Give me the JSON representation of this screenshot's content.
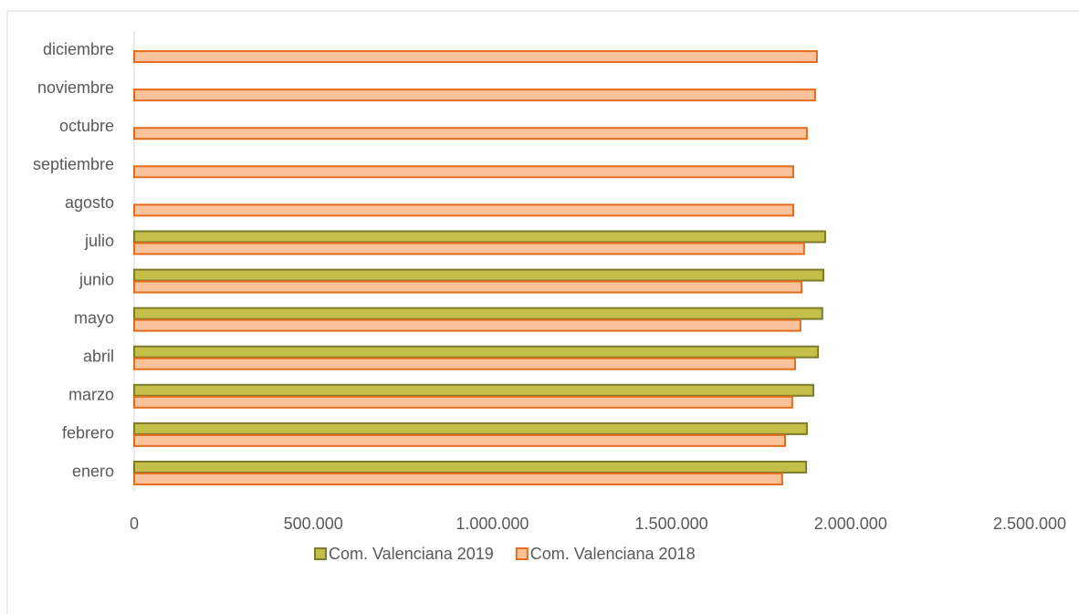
{
  "chart_data": {
    "type": "barh",
    "categories": [
      "enero",
      "febrero",
      "marzo",
      "abril",
      "mayo",
      "junio",
      "julio",
      "agosto",
      "septiembre",
      "octubre",
      "noviembre",
      "diciembre"
    ],
    "series": [
      {
        "name": "Com. Valenciana 2019",
        "color": "#c4bf48",
        "edge_color": "#7e7b2c",
        "values": [
          1876000,
          1878000,
          1896000,
          1909000,
          1921000,
          1924000,
          1929000,
          null,
          null,
          null,
          null,
          null
        ]
      },
      {
        "name": "Com. Valenciana 2018",
        "color": "#fbc39b",
        "edge_color": "#e46c1c",
        "values": [
          1809000,
          1817000,
          1837000,
          1845000,
          1860000,
          1863000,
          1870000,
          1840000,
          1840000,
          1878000,
          1901000,
          1906000
        ]
      }
    ],
    "xlim": [
      0,
      2500000
    ],
    "xticks": [
      0,
      {
        "value": 500000,
        "label": "500.000"
      },
      {
        "value": 1000000,
        "label": "1.000.000"
      },
      {
        "value": 1500000,
        "label": "1.500.000"
      },
      {
        "value": 2000000,
        "label": "2.000.000"
      },
      {
        "value": 2500000,
        "label": "2.500.000"
      }
    ],
    "grid": false,
    "legend": "bottom"
  }
}
